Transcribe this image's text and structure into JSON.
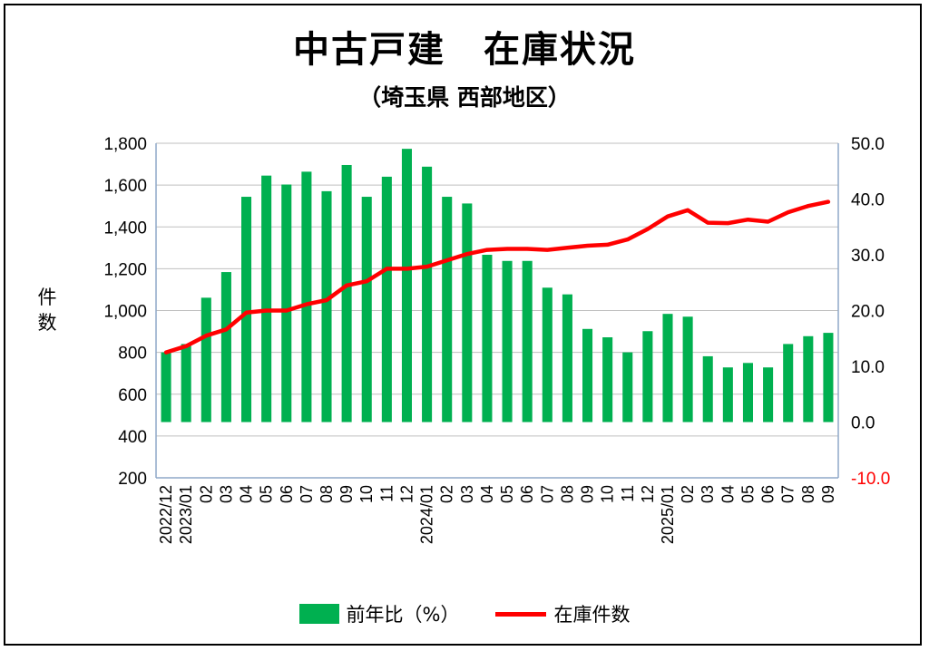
{
  "chart_data": {
    "type": "bar",
    "title": "中古戸建　在庫状況",
    "subtitle": "（埼玉県 西部地区）",
    "ylabel": "件数",
    "left_axis": {
      "min": 200,
      "max": 1800,
      "step": 200,
      "ticks": [
        "200",
        "400",
        "600",
        "800",
        "1,000",
        "1,200",
        "1,400",
        "1,600",
        "1,800"
      ]
    },
    "right_axis": {
      "min": -10,
      "max": 50,
      "step": 10,
      "ticks": [
        "-10.0",
        "0.0",
        "10.0",
        "20.0",
        "30.0",
        "40.0",
        "50.0"
      ]
    },
    "categories": [
      "2022/12",
      "2023/01",
      "02",
      "03",
      "04",
      "05",
      "06",
      "07",
      "08",
      "09",
      "10",
      "11",
      "12",
      "2024/01",
      "02",
      "03",
      "04",
      "05",
      "06",
      "07",
      "08",
      "09",
      "10",
      "11",
      "12",
      "2025/01",
      "02",
      "03",
      "04",
      "05",
      "06",
      "07",
      "08",
      "09"
    ],
    "series": [
      {
        "name": "前年比（%）",
        "type": "bar",
        "axis": "right",
        "color": "#00b050",
        "values": [
          12.5,
          14.0,
          22.3,
          26.9,
          40.4,
          44.2,
          42.6,
          44.9,
          41.4,
          46.1,
          40.4,
          44.0,
          49.0,
          45.8,
          40.4,
          39.2,
          30.0,
          28.9,
          28.9,
          24.1,
          22.9,
          16.7,
          15.2,
          12.5,
          16.3,
          19.4,
          18.9,
          11.8,
          9.8,
          10.6,
          9.8,
          14.0,
          15.4,
          16.0
        ]
      },
      {
        "name": "在庫件数",
        "type": "line",
        "axis": "left",
        "color": "#ff0000",
        "values": [
          800,
          830,
          880,
          910,
          990,
          1000,
          1000,
          1030,
          1050,
          1120,
          1140,
          1200,
          1200,
          1210,
          1240,
          1270,
          1290,
          1295,
          1295,
          1290,
          1300,
          1310,
          1315,
          1340,
          1390,
          1450,
          1480,
          1420,
          1418,
          1435,
          1425,
          1470,
          1500,
          1520
        ]
      }
    ],
    "grid": "horizontal",
    "legend": "bottom"
  }
}
